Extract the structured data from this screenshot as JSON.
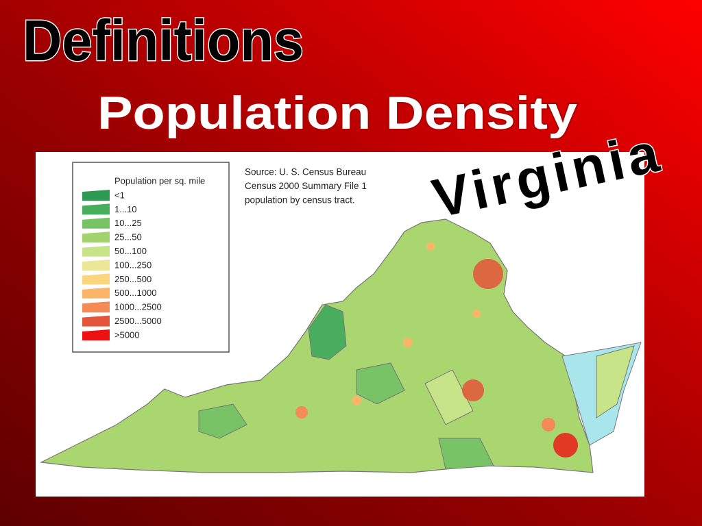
{
  "header": {
    "title": "Definitions",
    "subtitle": "Population Density",
    "state": "Virginia"
  },
  "map": {
    "legend": {
      "title": "Population per sq. mile",
      "items": [
        {
          "label": "<1",
          "color": "#2c9a52"
        },
        {
          "label": "1...10",
          "color": "#48ad5c"
        },
        {
          "label": "10...25",
          "color": "#78c365"
        },
        {
          "label": "25...50",
          "color": "#a2d36c"
        },
        {
          "label": "50...100",
          "color": "#c8e488"
        },
        {
          "label": "100...250",
          "color": "#ebe797"
        },
        {
          "label": "250...500",
          "color": "#fcd67f"
        },
        {
          "label": "500...1000",
          "color": "#fcb469"
        },
        {
          "label": "1000...2500",
          "color": "#f48a55"
        },
        {
          "label": "2500...5000",
          "color": "#e4553a"
        },
        {
          "label": ">5000",
          "color": "#ee1111"
        }
      ]
    },
    "source": [
      "Source: U. S. Census Bureau",
      "Census 2000 Summary File 1",
      "population by census tract."
    ]
  }
}
